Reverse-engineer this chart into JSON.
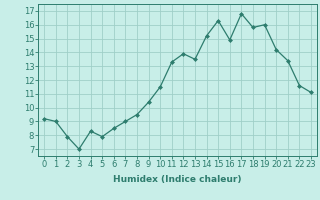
{
  "x": [
    0,
    1,
    2,
    3,
    4,
    5,
    6,
    7,
    8,
    9,
    10,
    11,
    12,
    13,
    14,
    15,
    16,
    17,
    18,
    19,
    20,
    21,
    22,
    23
  ],
  "y": [
    9.2,
    9.0,
    7.9,
    7.0,
    8.3,
    7.9,
    8.5,
    9.0,
    9.5,
    10.4,
    11.5,
    13.3,
    13.9,
    13.5,
    15.2,
    16.3,
    14.9,
    16.8,
    15.8,
    16.0,
    14.2,
    13.4,
    11.6,
    11.1
  ],
  "line_color": "#2e7d6e",
  "marker": "D",
  "marker_size": 2.0,
  "bg_color": "#c8eee8",
  "grid_color": "#a0cfc8",
  "xlabel": "Humidex (Indice chaleur)",
  "ylabel_ticks": [
    7,
    8,
    9,
    10,
    11,
    12,
    13,
    14,
    15,
    16,
    17
  ],
  "ylim": [
    6.5,
    17.5
  ],
  "xlim": [
    -0.5,
    23.5
  ],
  "tick_color": "#2e7d6e",
  "label_fontsize": 6.5,
  "tick_fontsize": 6.0,
  "linewidth": 0.9
}
